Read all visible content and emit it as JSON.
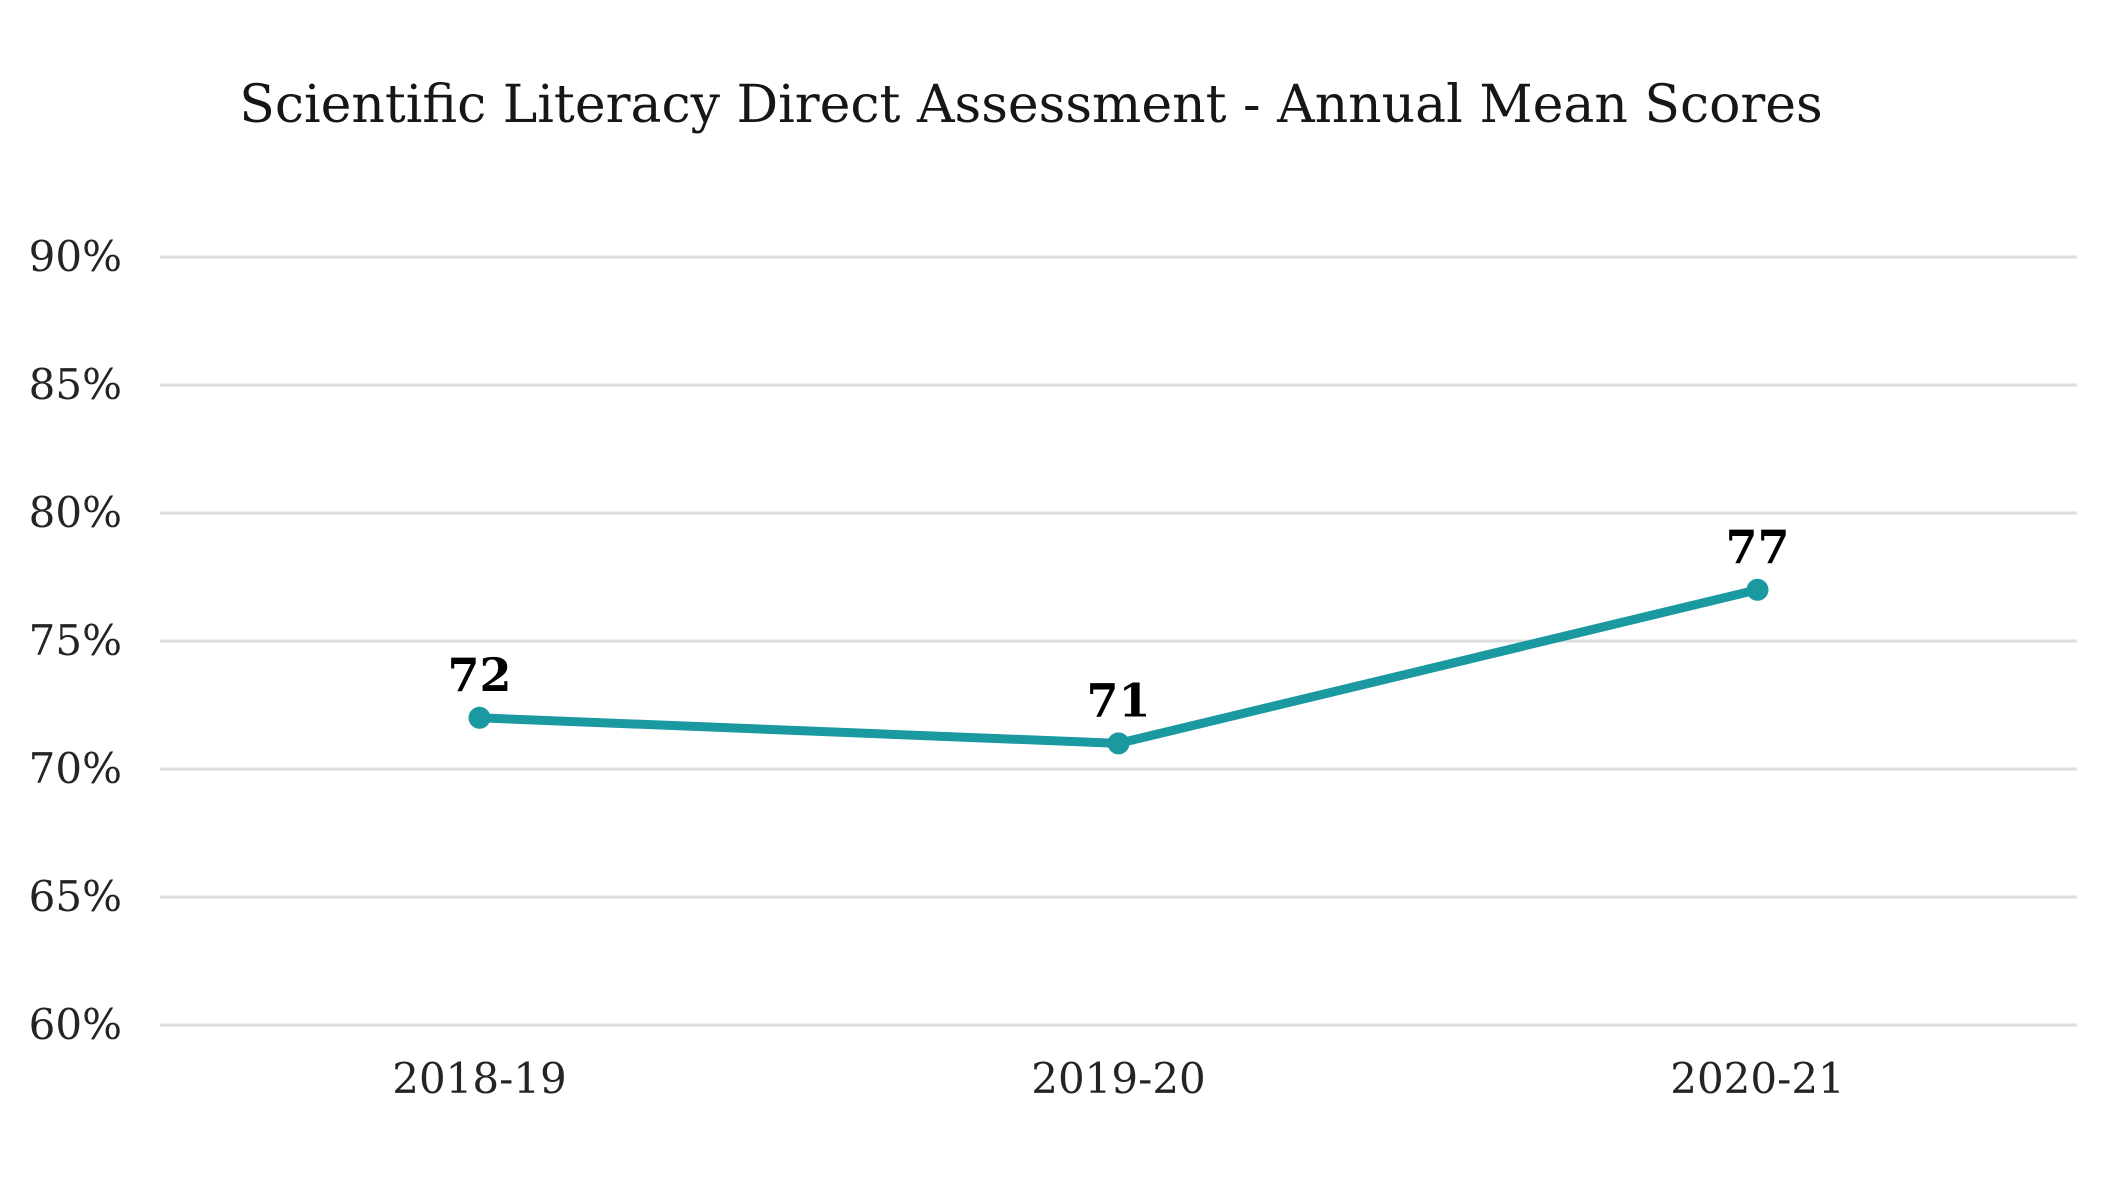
{
  "chart_data": {
    "type": "line",
    "title": "Scientific Literacy Direct Assessment - Annual Mean Scores",
    "categories": [
      "2018-19",
      "2019-20",
      "2020-21"
    ],
    "series": [
      {
        "values": [
          72,
          71,
          77
        ]
      }
    ],
    "data_labels": [
      "72",
      "71",
      "77"
    ],
    "xlabel": "",
    "ylabel": "",
    "ylim": [
      60,
      90
    ],
    "ytick_step": 5,
    "ytick_labels": [
      "90%",
      "85%",
      "80%",
      "75%",
      "70%",
      "65%",
      "60%"
    ],
    "ytick_values": [
      90,
      85,
      80,
      75,
      70,
      65,
      60
    ],
    "grid": "horizontal",
    "legend_position": "none",
    "colors": {
      "line": "#1A99A1",
      "marker": "#1A99A1",
      "data_label": "#000000",
      "tick_label": "#242424",
      "gridline": "#DEDEDE",
      "background": "#FFFFFF",
      "title": "#161616"
    }
  }
}
